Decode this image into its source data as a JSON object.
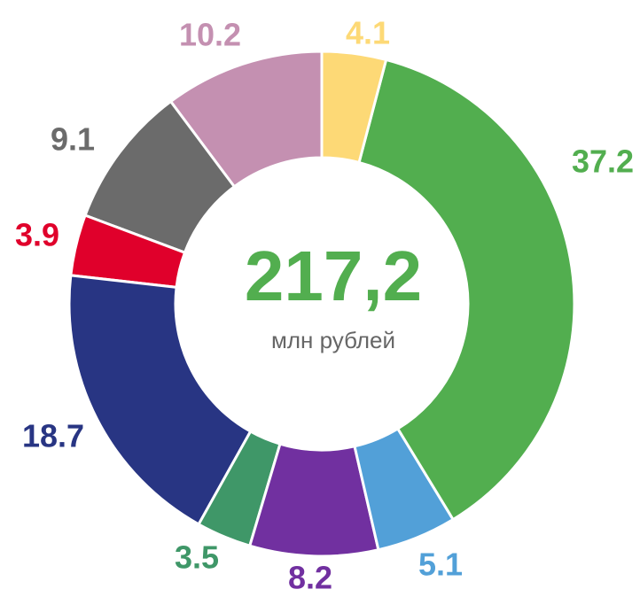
{
  "chart_data": {
    "type": "donut",
    "center_text": "217,2",
    "center_subtitle": "млн рублей",
    "values": [
      4.1,
      37.2,
      5.1,
      8.2,
      3.5,
      18.7,
      3.9,
      9.1,
      10.2
    ],
    "colors": [
      "#fdd976",
      "#52ae4f",
      "#52a0d8",
      "#7130a0",
      "#3f9768",
      "#283583",
      "#e0002b",
      "#6b6b6b",
      "#c490b1"
    ]
  }
}
